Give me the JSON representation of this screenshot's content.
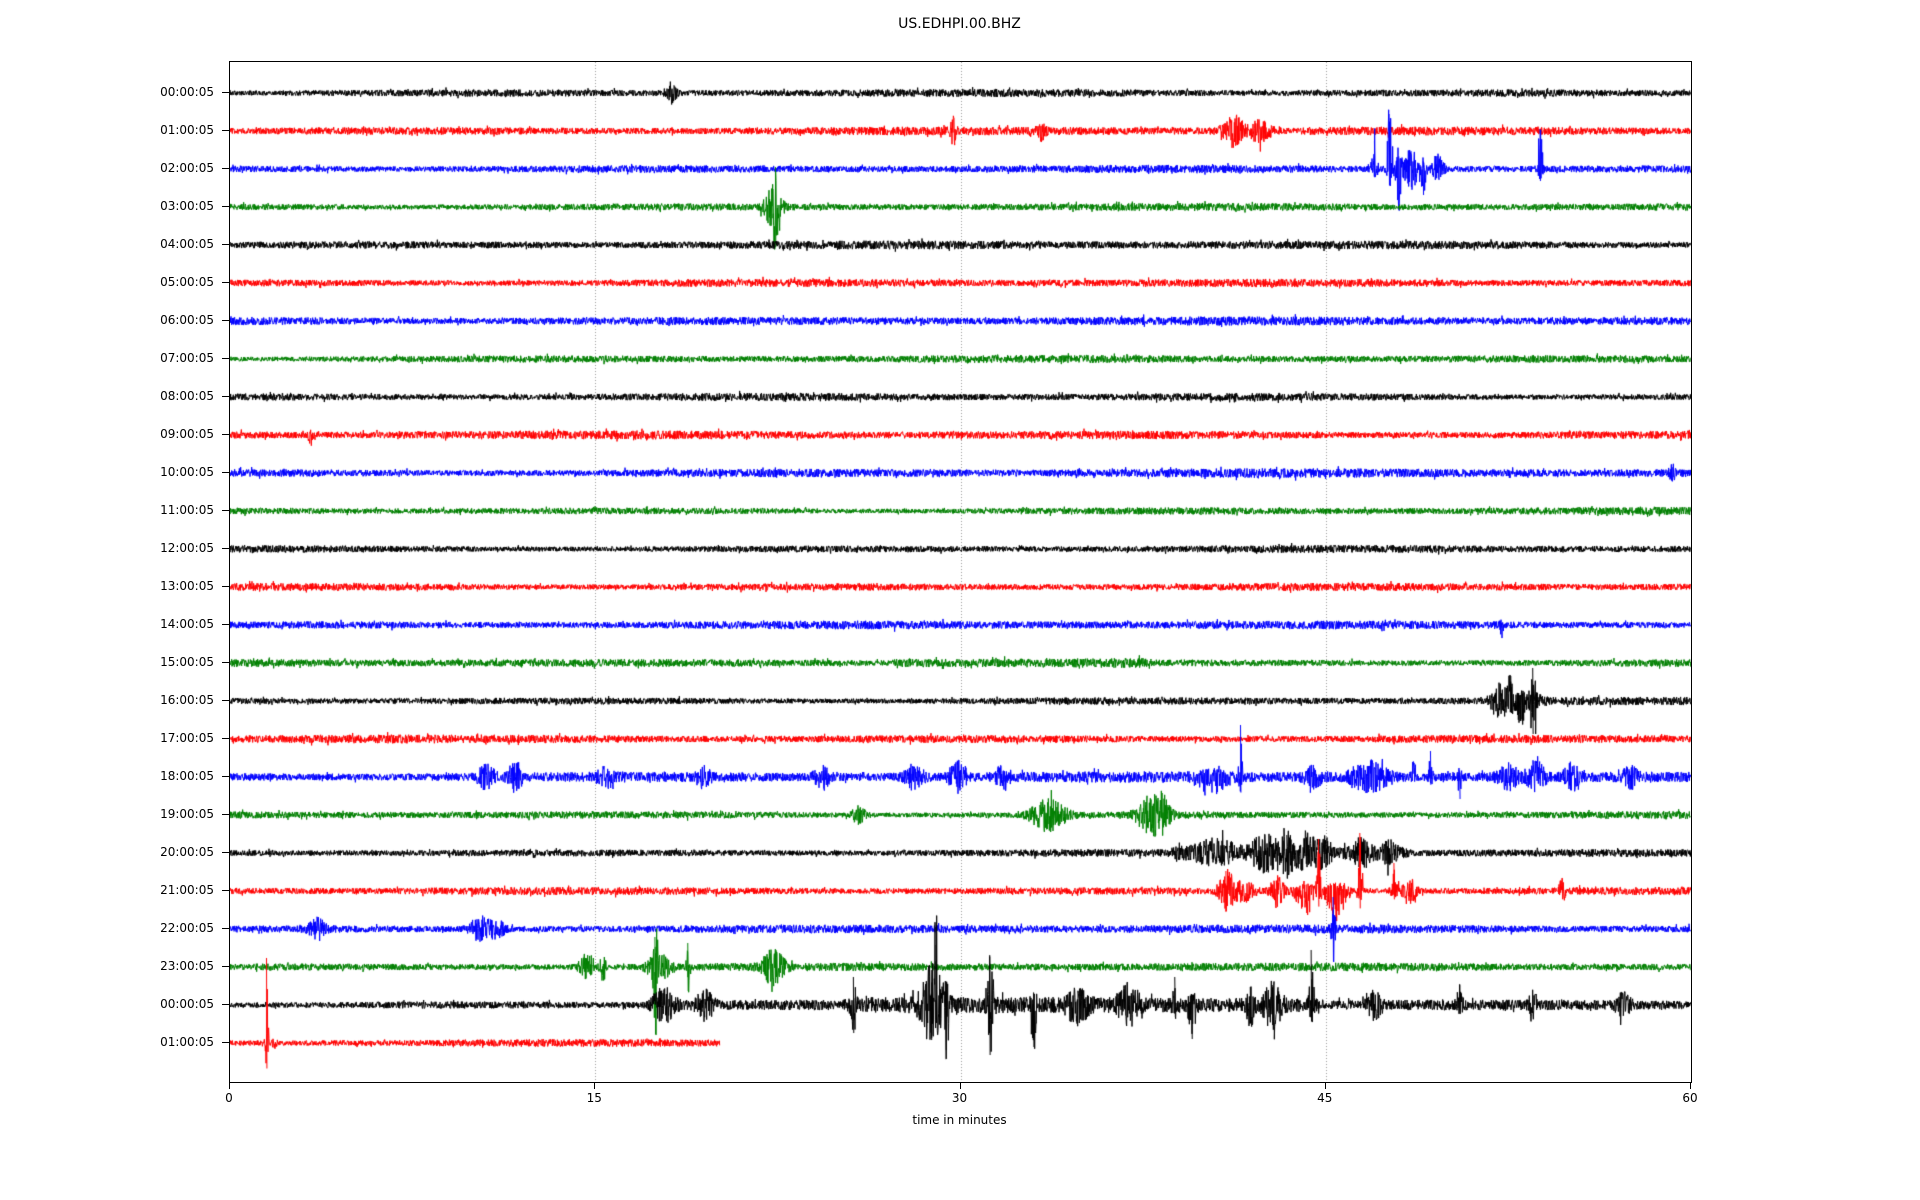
{
  "title": "US.EDHPI.00.BHZ",
  "axis": {
    "xlabel": "time in minutes",
    "xmin": 0,
    "xmax": 60,
    "xticks": [
      0,
      15,
      30,
      45,
      60
    ],
    "grid_minutes": [
      15,
      30,
      45
    ],
    "grid_color": "#9a9a9a"
  },
  "chart_data": {
    "type": "line",
    "title": "US.EDHPI.00.BHZ",
    "xlabel": "time in minutes",
    "x_range_minutes": [
      0,
      60
    ],
    "x_ticks": [
      0,
      15,
      30,
      45,
      60
    ],
    "legend": "none",
    "grid": "vertical dotted at 15/30/45",
    "description": "24-hour helicorder: one hourly trace per row, colors cycle black/red/blue/green; events = [minute, amplitude_px, width_min, direction(-1 down,0 both,1 up)]",
    "rows": [
      {
        "label": "00:00:05",
        "color": "#000000",
        "base": 3.4,
        "events": [
          [
            18.1,
            9,
            0.15,
            0
          ]
        ]
      },
      {
        "label": "01:00:05",
        "color": "#ff0000",
        "base": 3.4,
        "events": [
          [
            29.7,
            12,
            0.07,
            0
          ],
          [
            33.3,
            7,
            0.12,
            0
          ],
          [
            41.2,
            14,
            0.3,
            0
          ],
          [
            42.3,
            13,
            0.25,
            0
          ]
        ]
      },
      {
        "label": "02:00:05",
        "color": "#0000ff",
        "base": 3.4,
        "events": [
          [
            47.0,
            28,
            0.08,
            1
          ],
          [
            47.6,
            55,
            0.1,
            1
          ],
          [
            48.0,
            42,
            0.1,
            -1
          ],
          [
            48.5,
            18,
            0.25,
            0
          ],
          [
            49.0,
            26,
            0.08,
            -1
          ],
          [
            49.6,
            14,
            0.15,
            0
          ],
          [
            53.8,
            40,
            0.07,
            1
          ]
        ]
      },
      {
        "label": "03:00:05",
        "color": "#008000",
        "base": 3.4,
        "events": [
          [
            22.3,
            18,
            0.25,
            0
          ],
          [
            22.4,
            40,
            0.06,
            0
          ]
        ]
      },
      {
        "label": "04:00:05",
        "color": "#000000",
        "base": 3.4,
        "events": []
      },
      {
        "label": "05:00:05",
        "color": "#ff0000",
        "base": 3.5,
        "events": []
      },
      {
        "label": "06:00:05",
        "color": "#0000ff",
        "base": 3.6,
        "events": []
      },
      {
        "label": "07:00:05",
        "color": "#008000",
        "base": 3.4,
        "events": []
      },
      {
        "label": "08:00:05",
        "color": "#000000",
        "base": 3.4,
        "events": []
      },
      {
        "label": "09:00:05",
        "color": "#ff0000",
        "base": 3.5,
        "events": [
          [
            3.3,
            10,
            0.06,
            -1
          ]
        ]
      },
      {
        "label": "10:00:05",
        "color": "#0000ff",
        "base": 3.6,
        "events": [
          [
            59.2,
            8,
            0.08,
            0
          ]
        ]
      },
      {
        "label": "11:00:05",
        "color": "#008000",
        "base": 3.3,
        "events": []
      },
      {
        "label": "12:00:05",
        "color": "#000000",
        "base": 3.4,
        "events": []
      },
      {
        "label": "13:00:05",
        "color": "#ff0000",
        "base": 3.5,
        "events": []
      },
      {
        "label": "14:00:05",
        "color": "#0000ff",
        "base": 3.5,
        "events": [
          [
            52.2,
            13,
            0.05,
            -1
          ]
        ]
      },
      {
        "label": "15:00:05",
        "color": "#008000",
        "base": 3.3,
        "regions": [
          [
            27,
            38,
            1.5
          ]
        ],
        "events": []
      },
      {
        "label": "16:00:05",
        "color": "#000000",
        "base": 3.4,
        "regions": [
          [
            51.5,
            54.2,
            3
          ]
        ],
        "events": [
          [
            52.2,
            14,
            0.2,
            0
          ],
          [
            52.6,
            25,
            0.1,
            1
          ],
          [
            53.0,
            20,
            0.12,
            -1
          ],
          [
            53.5,
            33,
            0.08,
            0
          ]
        ]
      },
      {
        "label": "17:00:05",
        "color": "#ff0000",
        "base": 3.5,
        "events": []
      },
      {
        "label": "18:00:05",
        "color": "#0000ff",
        "base": 4.3,
        "events": [
          [
            10.5,
            10,
            0.25,
            0
          ],
          [
            11.7,
            13,
            0.2,
            0
          ],
          [
            15.5,
            7,
            0.3,
            0
          ],
          [
            19.4,
            9,
            0.2,
            0
          ],
          [
            24.3,
            11,
            0.2,
            0
          ],
          [
            28.1,
            11,
            0.25,
            0
          ],
          [
            29.9,
            13,
            0.25,
            0
          ],
          [
            31.7,
            11,
            0.2,
            0
          ],
          [
            40.3,
            16,
            0.4,
            -1
          ],
          [
            41.5,
            52,
            0.05,
            1
          ],
          [
            44.5,
            8,
            0.3,
            0
          ],
          [
            46.8,
            14,
            0.5,
            0
          ],
          [
            48.6,
            16,
            0.07,
            1
          ],
          [
            49.3,
            26,
            0.06,
            1
          ],
          [
            50.5,
            22,
            0.06,
            -1
          ],
          [
            52.5,
            10,
            0.3,
            0
          ],
          [
            53.6,
            14,
            0.25,
            0
          ],
          [
            55.1,
            11,
            0.2,
            0
          ],
          [
            57.5,
            8,
            0.2,
            0
          ]
        ]
      },
      {
        "label": "19:00:05",
        "color": "#008000",
        "base": 3.4,
        "events": [
          [
            25.8,
            8,
            0.2,
            0
          ],
          [
            33.6,
            15,
            0.5,
            0
          ],
          [
            37.8,
            17,
            0.4,
            0
          ],
          [
            38.3,
            13,
            0.2,
            0
          ]
        ]
      },
      {
        "label": "20:00:05",
        "color": "#000000",
        "base": 3.4,
        "regions": [
          [
            38.5,
            48.5,
            3.5
          ]
        ],
        "events": [
          [
            40.5,
            10,
            0.5,
            0
          ],
          [
            42.5,
            14,
            0.4,
            0
          ],
          [
            43.4,
            18,
            0.25,
            0
          ],
          [
            44.2,
            16,
            0.25,
            0
          ],
          [
            44.9,
            13,
            0.2,
            0
          ],
          [
            46.5,
            11,
            0.25,
            0
          ],
          [
            47.6,
            9,
            0.2,
            0
          ]
        ]
      },
      {
        "label": "21:00:05",
        "color": "#ff0000",
        "base": 3.5,
        "events": [
          [
            40.9,
            20,
            0.2,
            0
          ],
          [
            41.6,
            10,
            0.3,
            0
          ],
          [
            43.0,
            13,
            0.2,
            0
          ],
          [
            44.2,
            22,
            0.3,
            -1
          ],
          [
            44.7,
            52,
            0.05,
            1
          ],
          [
            45.4,
            28,
            0.3,
            -1
          ],
          [
            46.4,
            58,
            0.06,
            1
          ],
          [
            47.8,
            28,
            0.08,
            1
          ],
          [
            48.4,
            12,
            0.2,
            0
          ],
          [
            54.7,
            12,
            0.08,
            0
          ]
        ]
      },
      {
        "label": "22:00:05",
        "color": "#0000ff",
        "base": 3.6,
        "events": [
          [
            3.6,
            9,
            0.25,
            0
          ],
          [
            10.3,
            11,
            0.3,
            0
          ],
          [
            11.0,
            9,
            0.2,
            0
          ],
          [
            45.3,
            32,
            0.05,
            0
          ]
        ]
      },
      {
        "label": "23:00:05",
        "color": "#008000",
        "base": 3.4,
        "events": [
          [
            14.6,
            11,
            0.2,
            0
          ],
          [
            15.3,
            13,
            0.08,
            0
          ],
          [
            17.45,
            30,
            0.05,
            1
          ],
          [
            17.46,
            67,
            0.05,
            -1
          ],
          [
            17.6,
            16,
            0.3,
            0
          ],
          [
            18.8,
            24,
            0.05,
            0
          ],
          [
            22.3,
            16,
            0.3,
            0
          ]
        ]
      },
      {
        "label": "00:00:05",
        "color": "#000000",
        "base": 3.5,
        "regions": [
          [
            17,
            25,
            2
          ],
          [
            25,
            45,
            4
          ],
          [
            45,
            60,
            1.5
          ]
        ],
        "events": [
          [
            17.8,
            16,
            0.3,
            0
          ],
          [
            19.5,
            13,
            0.25,
            0
          ],
          [
            25.6,
            28,
            0.08,
            0
          ],
          [
            28.8,
            35,
            0.3,
            0
          ],
          [
            29.0,
            60,
            0.08,
            1
          ],
          [
            29.4,
            45,
            0.1,
            -1
          ],
          [
            31.2,
            50,
            0.1,
            0
          ],
          [
            33.0,
            42,
            0.07,
            -1
          ],
          [
            34.8,
            14,
            0.3,
            0
          ],
          [
            36.9,
            16,
            0.3,
            0
          ],
          [
            38.8,
            28,
            0.08,
            1
          ],
          [
            39.5,
            34,
            0.1,
            -1
          ],
          [
            41.9,
            18,
            0.1,
            0
          ],
          [
            42.8,
            20,
            0.25,
            0
          ],
          [
            44.4,
            55,
            0.07,
            1
          ],
          [
            47.0,
            12,
            0.2,
            0
          ],
          [
            50.5,
            20,
            0.08,
            1
          ],
          [
            53.5,
            16,
            0.1,
            0
          ],
          [
            57.2,
            10,
            0.2,
            0
          ]
        ]
      },
      {
        "label": "01:00:05",
        "color": "#ff0000",
        "base": 3.5,
        "end_minute": 20.1,
        "events": [
          [
            1.5,
            85,
            0.04,
            1
          ],
          [
            1.8,
            12,
            0.05,
            -1
          ]
        ]
      }
    ]
  }
}
